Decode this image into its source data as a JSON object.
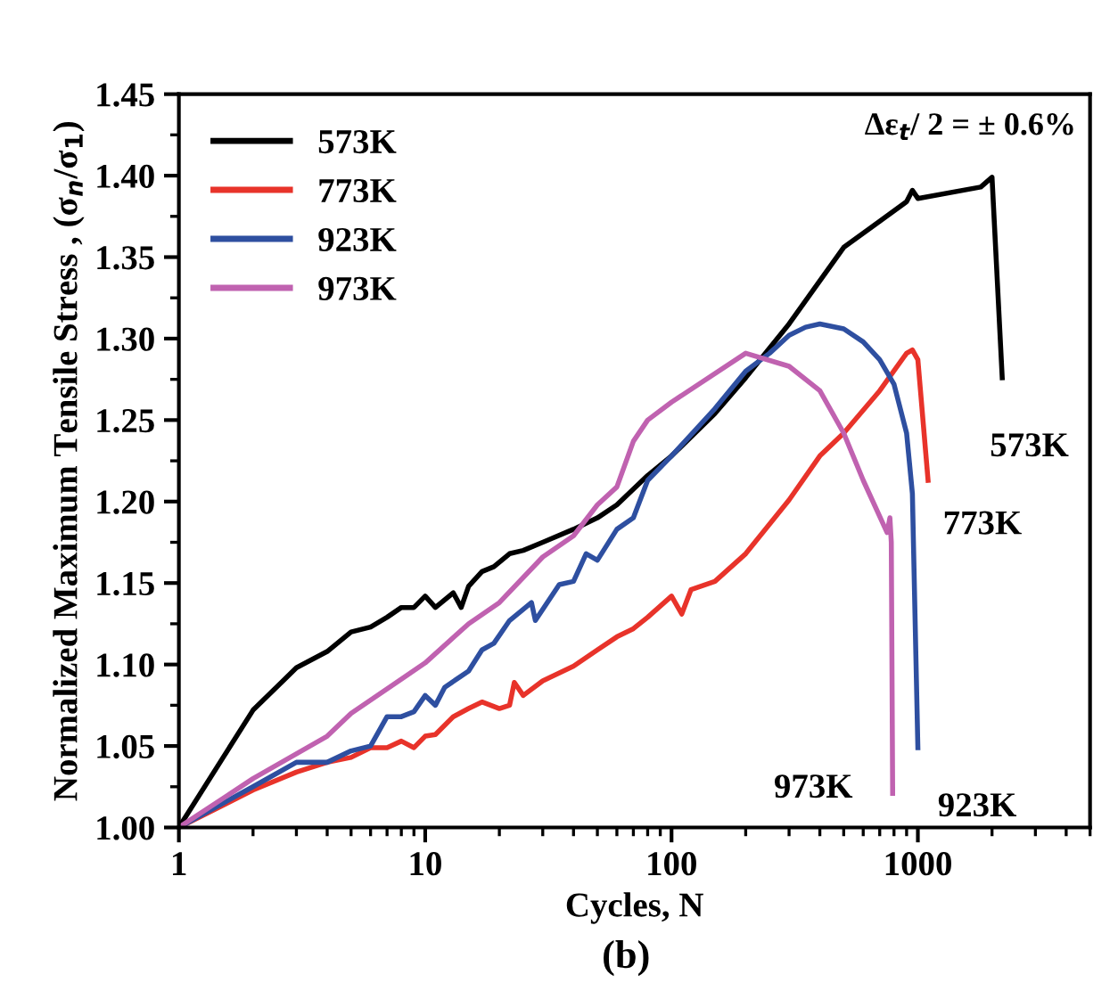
{
  "chart_data": {
    "type": "line",
    "xlabel": "Cycles, N",
    "ylabel": "Normalized Maximum Tensile Stress , (σ$_{n}$/σ$_{1}$)",
    "log": "x",
    "xlim": [
      1,
      5000
    ],
    "xticks": [
      1,
      10,
      100,
      1000
    ],
    "ylim": [
      1.0,
      1.45
    ],
    "yticks": [
      {
        "value": 1.0,
        "label": "1.00"
      },
      {
        "value": 1.05,
        "label": "1.05"
      },
      {
        "value": 1.1,
        "label": "1.10"
      },
      {
        "value": 1.15,
        "label": "1.15"
      },
      {
        "value": 1.2,
        "label": "1.20"
      },
      {
        "value": 1.25,
        "label": "1.25"
      },
      {
        "value": 1.3,
        "label": "1.30"
      },
      {
        "value": 1.35,
        "label": "1.35"
      },
      {
        "value": 1.4,
        "label": "1.40"
      },
      {
        "value": 1.45,
        "label": "1.45"
      }
    ],
    "grid": false,
    "legend": "top left",
    "line_style": "solid",
    "marker": "none",
    "series": [
      {
        "name": "573K",
        "color": "#000000",
        "x": [
          1,
          2,
          3,
          4,
          5,
          6,
          7,
          8,
          9,
          10,
          11,
          13,
          14,
          15,
          17,
          19,
          22,
          25,
          30,
          40,
          50,
          60,
          80,
          100,
          150,
          200,
          300,
          500,
          700,
          900,
          950,
          1000,
          1800,
          2000,
          2200
        ],
        "values": [
          1.0,
          1.072,
          1.098,
          1.108,
          1.12,
          1.123,
          1.129,
          1.135,
          1.135,
          1.142,
          1.135,
          1.144,
          1.135,
          1.148,
          1.157,
          1.16,
          1.168,
          1.17,
          1.175,
          1.183,
          1.19,
          1.198,
          1.216,
          1.228,
          1.254,
          1.276,
          1.309,
          1.356,
          1.372,
          1.384,
          1.391,
          1.386,
          1.393,
          1.399,
          1.276
        ]
      },
      {
        "name": "773K",
        "color": "#e8332a",
        "x": [
          1,
          2,
          3,
          4,
          5,
          6,
          7,
          8,
          9,
          10,
          11,
          13,
          15,
          17,
          20,
          22,
          23,
          25,
          30,
          40,
          50,
          60,
          70,
          80,
          100,
          110,
          120,
          150,
          200,
          300,
          400,
          500,
          700,
          900,
          950,
          1000,
          1100
        ],
        "values": [
          1.0,
          1.023,
          1.034,
          1.04,
          1.043,
          1.049,
          1.049,
          1.053,
          1.049,
          1.056,
          1.057,
          1.068,
          1.073,
          1.077,
          1.073,
          1.075,
          1.089,
          1.081,
          1.09,
          1.099,
          1.109,
          1.117,
          1.122,
          1.129,
          1.142,
          1.131,
          1.146,
          1.151,
          1.168,
          1.201,
          1.228,
          1.242,
          1.268,
          1.291,
          1.293,
          1.287,
          1.213
        ]
      },
      {
        "name": "923K",
        "color": "#2e4fa0",
        "x": [
          1,
          2,
          3,
          4,
          5,
          6,
          7,
          8,
          9,
          10,
          11,
          12,
          15,
          17,
          19,
          22,
          27,
          28,
          35,
          40,
          45,
          50,
          60,
          70,
          80,
          100,
          150,
          200,
          250,
          300,
          350,
          400,
          500,
          600,
          700,
          800,
          900,
          950,
          1000
        ],
        "values": [
          1.0,
          1.025,
          1.04,
          1.04,
          1.047,
          1.05,
          1.068,
          1.068,
          1.071,
          1.081,
          1.075,
          1.086,
          1.096,
          1.109,
          1.113,
          1.127,
          1.138,
          1.127,
          1.149,
          1.151,
          1.168,
          1.164,
          1.183,
          1.19,
          1.213,
          1.228,
          1.257,
          1.28,
          1.291,
          1.302,
          1.307,
          1.309,
          1.306,
          1.298,
          1.287,
          1.272,
          1.242,
          1.205,
          1.049
        ]
      },
      {
        "name": "973K",
        "color": "#c062b0",
        "x": [
          1,
          2,
          4,
          5,
          10,
          15,
          20,
          30,
          40,
          50,
          60,
          70,
          80,
          100,
          200,
          300,
          400,
          500,
          600,
          750,
          770,
          780,
          790
        ],
        "values": [
          1.0,
          1.03,
          1.056,
          1.07,
          1.101,
          1.125,
          1.138,
          1.166,
          1.179,
          1.198,
          1.209,
          1.237,
          1.25,
          1.261,
          1.291,
          1.283,
          1.268,
          1.242,
          1.213,
          1.181,
          1.19,
          1.175,
          1.021
        ]
      }
    ],
    "annotations": [
      {
        "text": "573K",
        "x": 2200,
        "y": 1.276
      },
      {
        "text": "773K",
        "x": 1100,
        "y": 1.213
      },
      {
        "text": "923K",
        "x": 1000,
        "y": 1.049
      },
      {
        "text": "973K",
        "x": 790,
        "y": 1.021
      },
      "Δε$_{t}$/ 2 = ± 0.6%",
      "(b)"
    ]
  }
}
